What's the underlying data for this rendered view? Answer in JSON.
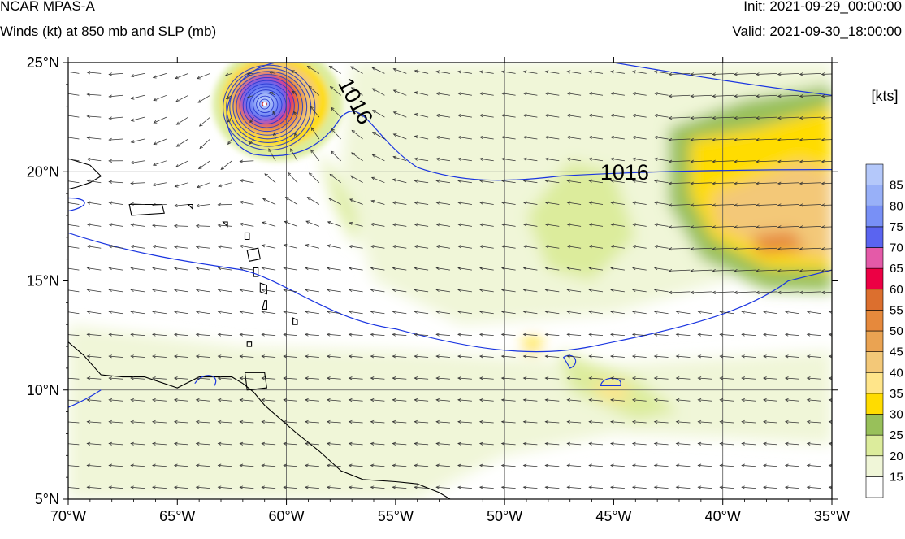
{
  "header": {
    "model": "NCAR MPAS-A",
    "fields": "Winds (kt) at 850 mb and SLP (mb)",
    "init": "Init: 2021-09-29_00:00:00",
    "valid": "Valid: 2021-09-30_18:00:00"
  },
  "map": {
    "lon_range": [
      -70,
      -35
    ],
    "lat_range": [
      5,
      25
    ],
    "lon_ticks": [
      {
        "value": -70,
        "label": "70°W"
      },
      {
        "value": -65,
        "label": "65°W"
      },
      {
        "value": -60,
        "label": "60°W"
      },
      {
        "value": -55,
        "label": "55°W"
      },
      {
        "value": -50,
        "label": "50°W"
      },
      {
        "value": -45,
        "label": "45°W"
      },
      {
        "value": -40,
        "label": "40°W"
      },
      {
        "value": -35,
        "label": "35°W"
      }
    ],
    "lat_ticks": [
      {
        "value": 5,
        "label": "5°N"
      },
      {
        "value": 10,
        "label": "10°N"
      },
      {
        "value": 15,
        "label": "15°N"
      },
      {
        "value": 20,
        "label": "20°N"
      },
      {
        "value": 25,
        "label": "25°N"
      }
    ],
    "gridlines": {
      "lons": [
        -60,
        -50,
        -40
      ],
      "lats": [
        10,
        20
      ]
    },
    "isobar_color": "#1a35e0",
    "isobar_labels": [
      {
        "text": "1016",
        "lon": -56.9,
        "lat": 23.2,
        "rotate": 62
      },
      {
        "text": "1016",
        "lon": -44.5,
        "lat": 19.9,
        "rotate": 0
      }
    ],
    "storm_center": {
      "lon": -61.0,
      "lat": 23.1
    }
  },
  "colorbar": {
    "title": "[kts]",
    "levels": [
      15,
      20,
      25,
      30,
      35,
      40,
      45,
      50,
      55,
      60,
      65,
      70,
      75,
      80,
      85
    ],
    "colors": [
      "#ffffff",
      "#f0f6d8",
      "#dcec9c",
      "#98c05a",
      "#ffdc00",
      "#ffe58a",
      "#f3c878",
      "#eaa352",
      "#e6893c",
      "#dc6f2e",
      "#ec0044",
      "#e45aa8",
      "#5a64f0",
      "#7890f6",
      "#98b0f8",
      "#b4c8fa"
    ]
  }
}
